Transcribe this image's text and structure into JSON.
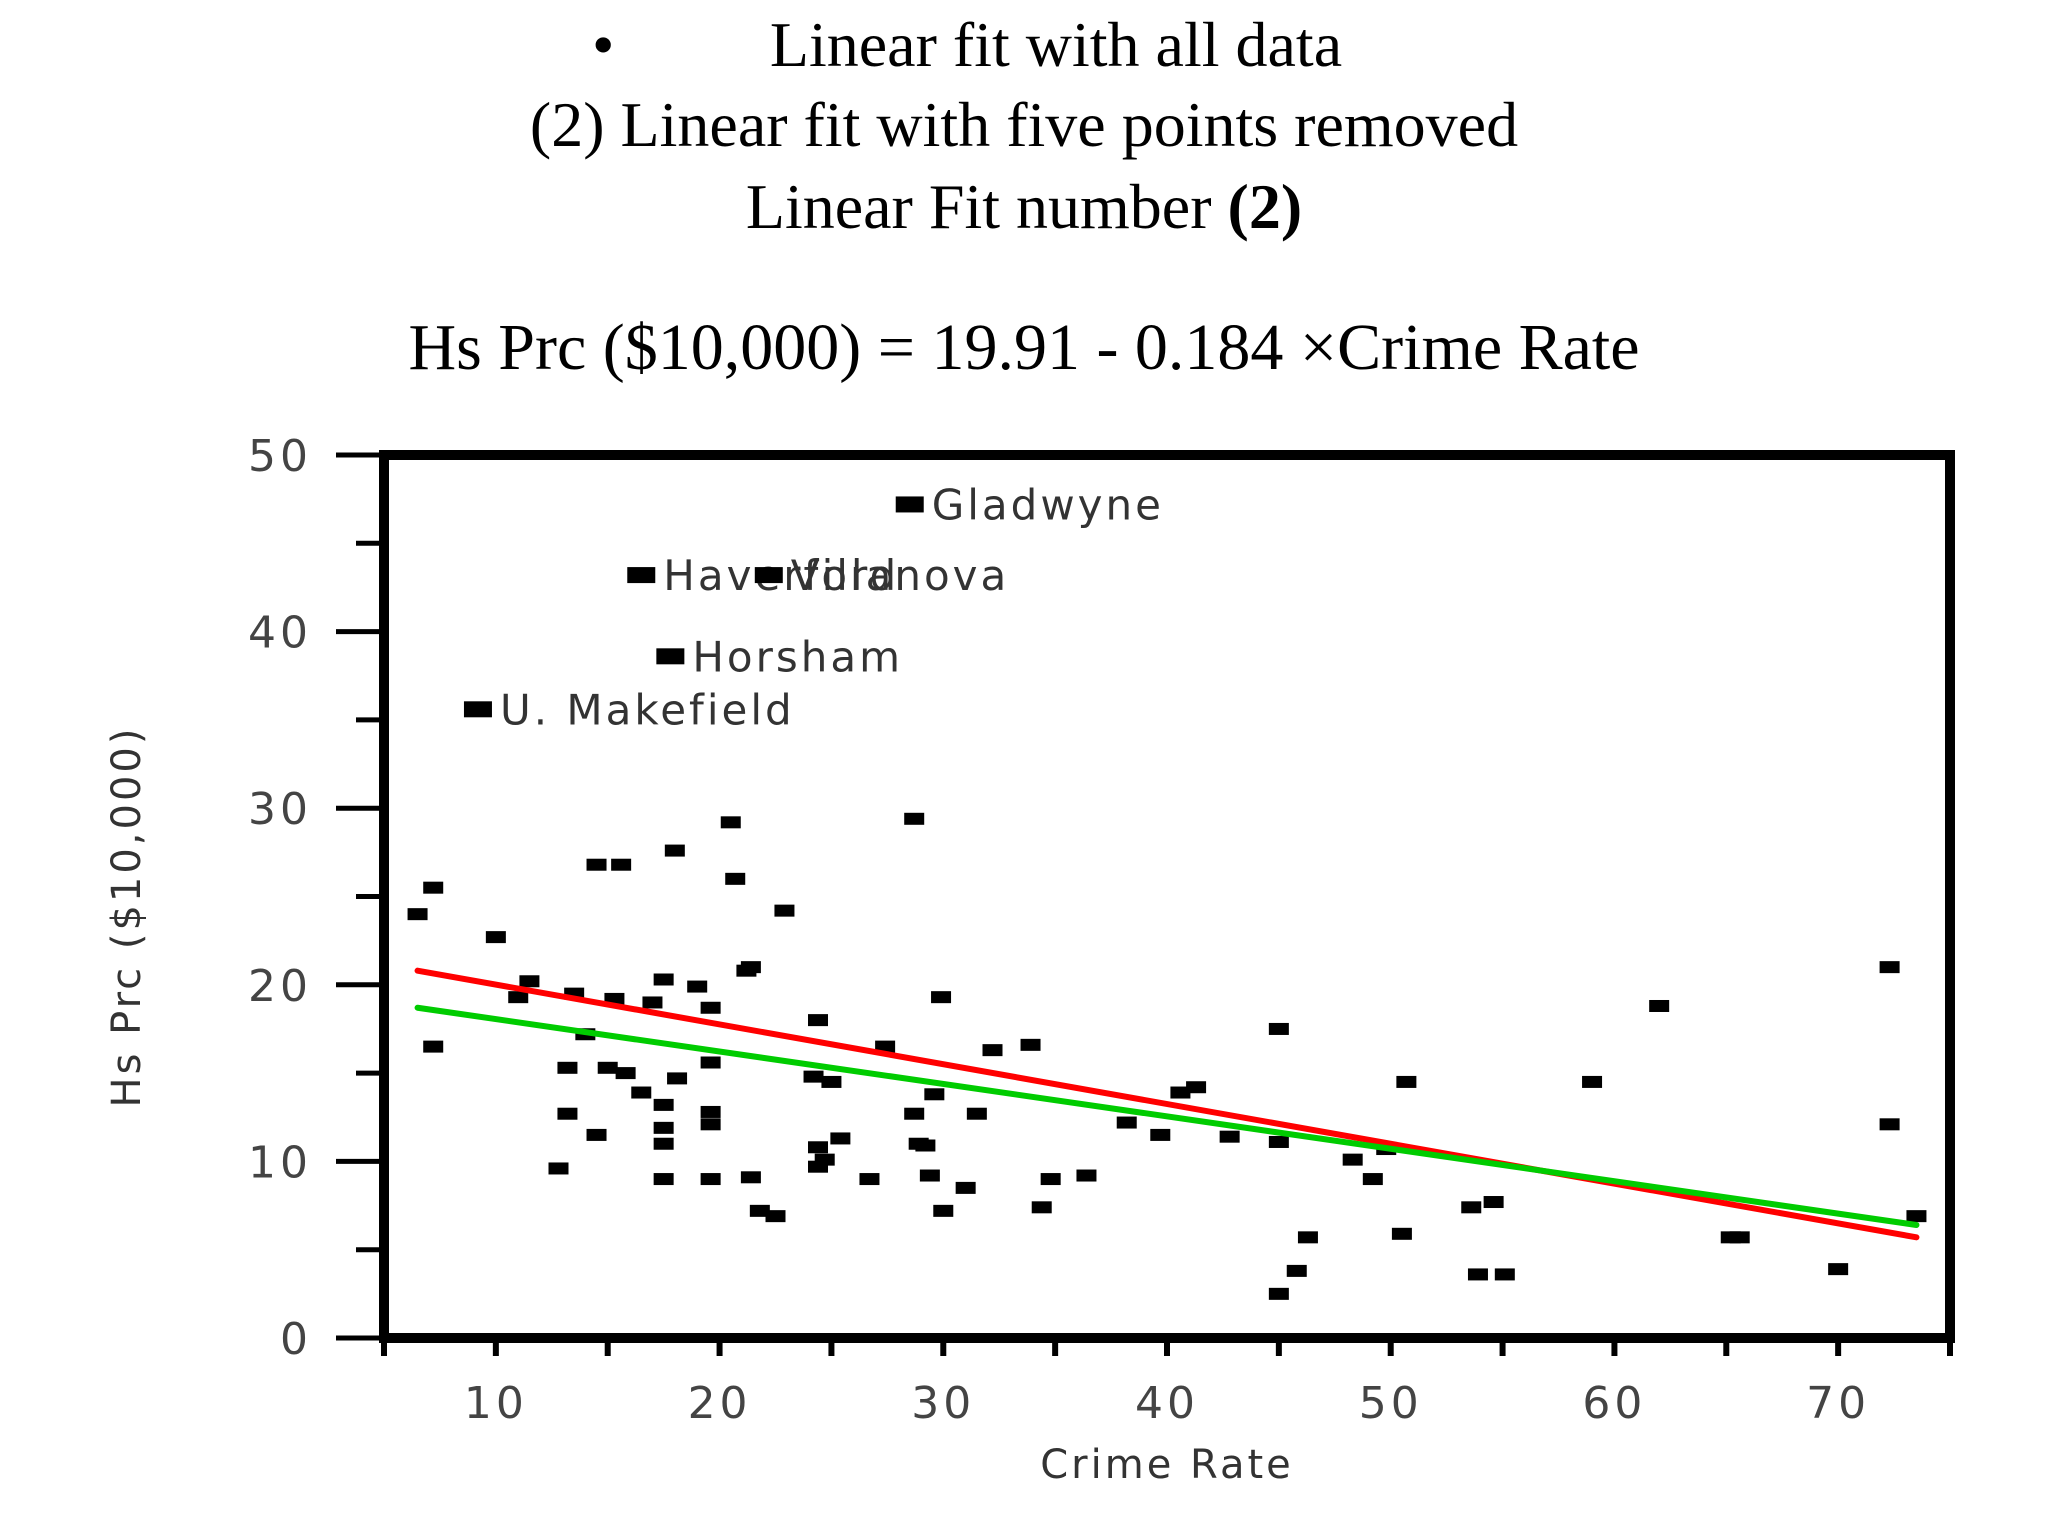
{
  "header": {
    "bullet": "•",
    "line1": "Linear fit with all data",
    "line2": "(2) Linear fit with five points removed",
    "line3_prefix": "Linear Fit number ",
    "line3_bold": "(2)",
    "equation": "Hs Prc ($10,000) = 19.91 - 0.184 ×Crime Rate"
  },
  "chart_data": {
    "type": "scatter",
    "xlabel": "Crime Rate",
    "ylabel": "Hs Prc ($10,000)",
    "xlim": [
      5,
      75
    ],
    "ylim": [
      0,
      50
    ],
    "xticks": [
      10,
      20,
      30,
      40,
      50,
      60,
      70
    ],
    "yticks": [
      0,
      10,
      20,
      30,
      40,
      50
    ],
    "grid": false,
    "points": [
      [
        6.5,
        24.0
      ],
      [
        7.2,
        25.5
      ],
      [
        7.2,
        16.5
      ],
      [
        10.0,
        22.7
      ],
      [
        11.0,
        19.3
      ],
      [
        11.5,
        20.2
      ],
      [
        12.8,
        9.6
      ],
      [
        13.2,
        15.3
      ],
      [
        13.2,
        12.7
      ],
      [
        13.5,
        19.5
      ],
      [
        14.0,
        17.2
      ],
      [
        14.5,
        11.5
      ],
      [
        14.5,
        26.8
      ],
      [
        15.0,
        15.3
      ],
      [
        15.3,
        19.2
      ],
      [
        15.6,
        26.8
      ],
      [
        15.8,
        15.0
      ],
      [
        16.5,
        13.9
      ],
      [
        17.0,
        19.0
      ],
      [
        17.5,
        13.2
      ],
      [
        17.5,
        11.9
      ],
      [
        17.5,
        11.0
      ],
      [
        17.5,
        9.0
      ],
      [
        17.5,
        20.3
      ],
      [
        18.0,
        27.6
      ],
      [
        18.1,
        14.7
      ],
      [
        19.0,
        19.9
      ],
      [
        19.6,
        18.7
      ],
      [
        19.6,
        15.6
      ],
      [
        19.6,
        12.8
      ],
      [
        19.6,
        12.1
      ],
      [
        19.6,
        9.0
      ],
      [
        20.5,
        29.2
      ],
      [
        20.7,
        26.0
      ],
      [
        21.2,
        20.8
      ],
      [
        21.4,
        21.0
      ],
      [
        21.4,
        9.1
      ],
      [
        21.8,
        7.2
      ],
      [
        22.5,
        6.9
      ],
      [
        22.9,
        24.2
      ],
      [
        24.2,
        14.8
      ],
      [
        24.4,
        18.0
      ],
      [
        24.4,
        10.8
      ],
      [
        24.4,
        9.7
      ],
      [
        24.7,
        10.1
      ],
      [
        25.0,
        14.5
      ],
      [
        25.4,
        11.3
      ],
      [
        26.7,
        9.0
      ],
      [
        27.4,
        16.5
      ],
      [
        28.7,
        12.7
      ],
      [
        28.7,
        29.4
      ],
      [
        28.9,
        11.0
      ],
      [
        29.2,
        10.9
      ],
      [
        29.4,
        9.2
      ],
      [
        29.6,
        13.8
      ],
      [
        29.9,
        19.3
      ],
      [
        30.0,
        7.2
      ],
      [
        31.0,
        8.5
      ],
      [
        31.5,
        12.7
      ],
      [
        32.2,
        16.3
      ],
      [
        33.9,
        16.6
      ],
      [
        34.4,
        7.4
      ],
      [
        34.8,
        9.0
      ],
      [
        36.4,
        9.2
      ],
      [
        38.2,
        12.2
      ],
      [
        39.7,
        11.5
      ],
      [
        40.6,
        13.9
      ],
      [
        41.3,
        14.2
      ],
      [
        42.8,
        11.4
      ],
      [
        45.0,
        11.1
      ],
      [
        45.0,
        17.5
      ],
      [
        45.0,
        2.5
      ],
      [
        45.8,
        3.8
      ],
      [
        46.3,
        5.7
      ],
      [
        48.3,
        10.1
      ],
      [
        49.2,
        9.0
      ],
      [
        49.8,
        10.7
      ],
      [
        50.5,
        5.9
      ],
      [
        50.7,
        14.5
      ],
      [
        53.6,
        7.4
      ],
      [
        53.9,
        3.6
      ],
      [
        54.6,
        7.7
      ],
      [
        55.1,
        3.6
      ],
      [
        59.0,
        14.5
      ],
      [
        62.0,
        18.8
      ],
      [
        65.2,
        5.7
      ],
      [
        65.6,
        5.7
      ],
      [
        70.0,
        3.9
      ],
      [
        72.3,
        21.0
      ],
      [
        72.3,
        12.1
      ],
      [
        73.5,
        6.9
      ]
    ],
    "labeled_points": [
      {
        "label": "Gladwyne",
        "x": 28.5,
        "y": 47.2
      },
      {
        "label": "Haverford",
        "x": 16.5,
        "y": 43.2
      },
      {
        "label": "Villanova",
        "x": 22.2,
        "y": 43.2
      },
      {
        "label": "Horsham",
        "x": 17.8,
        "y": 38.6
      },
      {
        "label": "U. Makefield",
        "x": 9.2,
        "y": 35.6
      }
    ],
    "fit_lines": [
      {
        "name": "Linear fit with all data",
        "color": "#ff0000",
        "x": [
          6.5,
          73.5
        ],
        "y": [
          20.8,
          5.7
        ]
      },
      {
        "name": "Linear fit with five points removed",
        "color": "#00cc00",
        "x": [
          6.5,
          73.5
        ],
        "y": [
          18.7,
          6.4
        ]
      }
    ]
  }
}
